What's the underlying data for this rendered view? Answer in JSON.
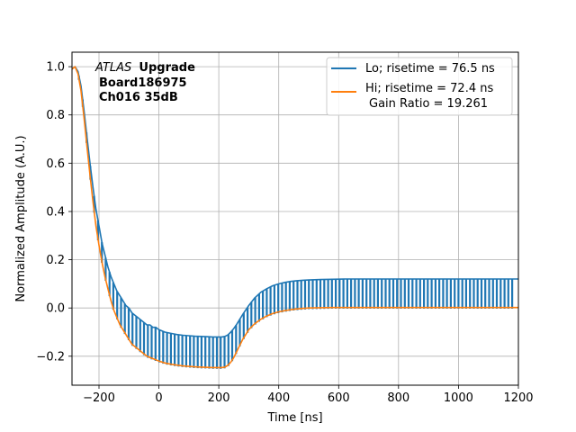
{
  "chart_data": {
    "type": "line",
    "title": "",
    "xlabel": "Time [ns]",
    "ylabel": "Normalized Amplitude (A.U.)",
    "xlim": [
      -290,
      1200
    ],
    "ylim": [
      -0.32,
      1.06
    ],
    "xticks": [
      -200,
      0,
      200,
      400,
      600,
      800,
      1000,
      1200
    ],
    "xtick_labels": [
      "−200",
      "0",
      "200",
      "400",
      "600",
      "800",
      "1000",
      "1200"
    ],
    "yticks": [
      -0.2,
      0.0,
      0.2,
      0.4,
      0.6,
      0.8,
      1.0
    ],
    "ytick_labels": [
      "−0.2",
      "0.0",
      "0.2",
      "0.4",
      "0.6",
      "0.8",
      "1.0"
    ],
    "grid": true,
    "legend_position": "top-right",
    "annotation": {
      "line1_italic": "ATLAS",
      "line1_bold": "Upgrade",
      "line2": "Board186975",
      "line3": "Ch016 35dB"
    },
    "legend": {
      "lo_label": "Lo; risetime = 76.5 ns",
      "hi_label_line1": "Hi; risetime = 72.4 ns",
      "hi_label_line2": "Gain Ratio = 19.261"
    },
    "series": [
      {
        "name": "Lo; risetime = 76.5 ns",
        "color": "#1f77b4",
        "style": "line with vertical sample drops",
        "x": [
          -290,
          -280,
          -270,
          -260,
          -250,
          -240,
          -230,
          -220,
          -210,
          -200,
          -190,
          -180,
          -170,
          -160,
          -150,
          -140,
          -130,
          -120,
          -110,
          -100,
          -90,
          -80,
          -70,
          -60,
          -50,
          -40,
          -30,
          -20,
          -10,
          0,
          20,
          40,
          60,
          80,
          100,
          120,
          140,
          160,
          180,
          200,
          210,
          220,
          230,
          240,
          250,
          260,
          270,
          280,
          290,
          300,
          320,
          340,
          360,
          380,
          400,
          420,
          440,
          460,
          480,
          500,
          540,
          580,
          620,
          700,
          800,
          900,
          1000,
          1100,
          1200
        ],
        "values": [
          0.99,
          1.0,
          0.98,
          0.92,
          0.82,
          0.71,
          0.6,
          0.5,
          0.41,
          0.34,
          0.27,
          0.22,
          0.17,
          0.13,
          0.1,
          0.07,
          0.05,
          0.03,
          0.01,
          0.0,
          -0.02,
          -0.03,
          -0.04,
          -0.05,
          -0.06,
          -0.07,
          -0.07,
          -0.08,
          -0.08,
          -0.09,
          -0.1,
          -0.105,
          -0.11,
          -0.113,
          -0.115,
          -0.117,
          -0.118,
          -0.119,
          -0.12,
          -0.12,
          -0.12,
          -0.118,
          -0.112,
          -0.1,
          -0.085,
          -0.067,
          -0.047,
          -0.027,
          -0.008,
          0.01,
          0.042,
          0.065,
          0.08,
          0.092,
          0.1,
          0.106,
          0.11,
          0.113,
          0.115,
          0.116,
          0.118,
          0.119,
          0.12,
          0.12,
          0.12,
          0.12,
          0.12,
          0.12,
          0.12
        ]
      },
      {
        "name": "Hi; risetime = 72.4 ns Gain Ratio = 19.261",
        "color": "#ff7f0e",
        "style": "line",
        "x": [
          -290,
          -280,
          -270,
          -260,
          -250,
          -240,
          -230,
          -220,
          -210,
          -200,
          -190,
          -180,
          -170,
          -160,
          -150,
          -140,
          -130,
          -120,
          -110,
          -100,
          -90,
          -80,
          -70,
          -60,
          -50,
          -40,
          -30,
          -20,
          -10,
          0,
          20,
          40,
          60,
          80,
          100,
          120,
          140,
          160,
          180,
          200,
          210,
          220,
          230,
          240,
          250,
          260,
          270,
          280,
          290,
          300,
          320,
          340,
          360,
          380,
          400,
          420,
          440,
          460,
          480,
          500,
          540,
          580,
          620,
          700,
          800,
          900,
          1000,
          1100,
          1200
        ],
        "values": [
          0.99,
          1.0,
          0.97,
          0.9,
          0.79,
          0.67,
          0.55,
          0.44,
          0.34,
          0.26,
          0.19,
          0.13,
          0.08,
          0.03,
          -0.01,
          -0.04,
          -0.07,
          -0.09,
          -0.11,
          -0.13,
          -0.15,
          -0.16,
          -0.17,
          -0.18,
          -0.19,
          -0.2,
          -0.205,
          -0.21,
          -0.215,
          -0.22,
          -0.228,
          -0.233,
          -0.237,
          -0.24,
          -0.242,
          -0.244,
          -0.245,
          -0.246,
          -0.247,
          -0.247,
          -0.247,
          -0.245,
          -0.238,
          -0.225,
          -0.205,
          -0.18,
          -0.155,
          -0.13,
          -0.11,
          -0.09,
          -0.065,
          -0.047,
          -0.033,
          -0.023,
          -0.016,
          -0.011,
          -0.007,
          -0.004,
          -0.002,
          0.0,
          0.001,
          0.002,
          0.002,
          0.002,
          0.002,
          0.002,
          0.002,
          0.002,
          0.002
        ]
      }
    ]
  }
}
